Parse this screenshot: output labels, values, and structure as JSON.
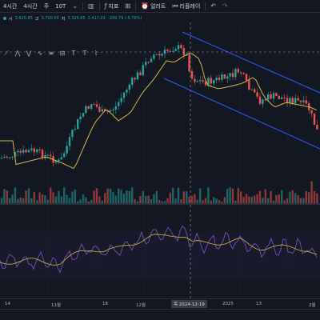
{
  "toolbar": {
    "items": [
      {
        "label": "4시간"
      },
      {
        "label": "4시간"
      },
      {
        "label": "주"
      },
      {
        "label": "10T"
      },
      {
        "label": "지표"
      },
      {
        "label": "얼러트"
      },
      {
        "label": "리플레이"
      }
    ]
  },
  "ohlc": {
    "open_label": "시",
    "open": "3,626.85",
    "high_label": "고",
    "high": "3,720.00",
    "low_label": "저",
    "low": "3,326.85",
    "close": "3,417.01",
    "change": "-209.79 (-5.78%)"
  },
  "chart_data": {
    "type": "candlestick",
    "x": [
      "14",
      "11월",
      "18",
      "12월",
      "목 2024-12-19",
      "2025",
      "13",
      "2월"
    ],
    "crosshair_date": "목 2024-12-19",
    "colors": {
      "up": "#26a69a",
      "down": "#ef5350",
      "ma": "#d4b74a",
      "channel": "#2962ff",
      "rsi": "#7e57c2",
      "rsi_ma": "#d4b74a"
    }
  },
  "time_axis": {
    "labels": [
      "14",
      "11월",
      "18",
      "12월",
      "2025",
      "13",
      "2월"
    ]
  },
  "bottom_bar": {
    "label": ""
  }
}
